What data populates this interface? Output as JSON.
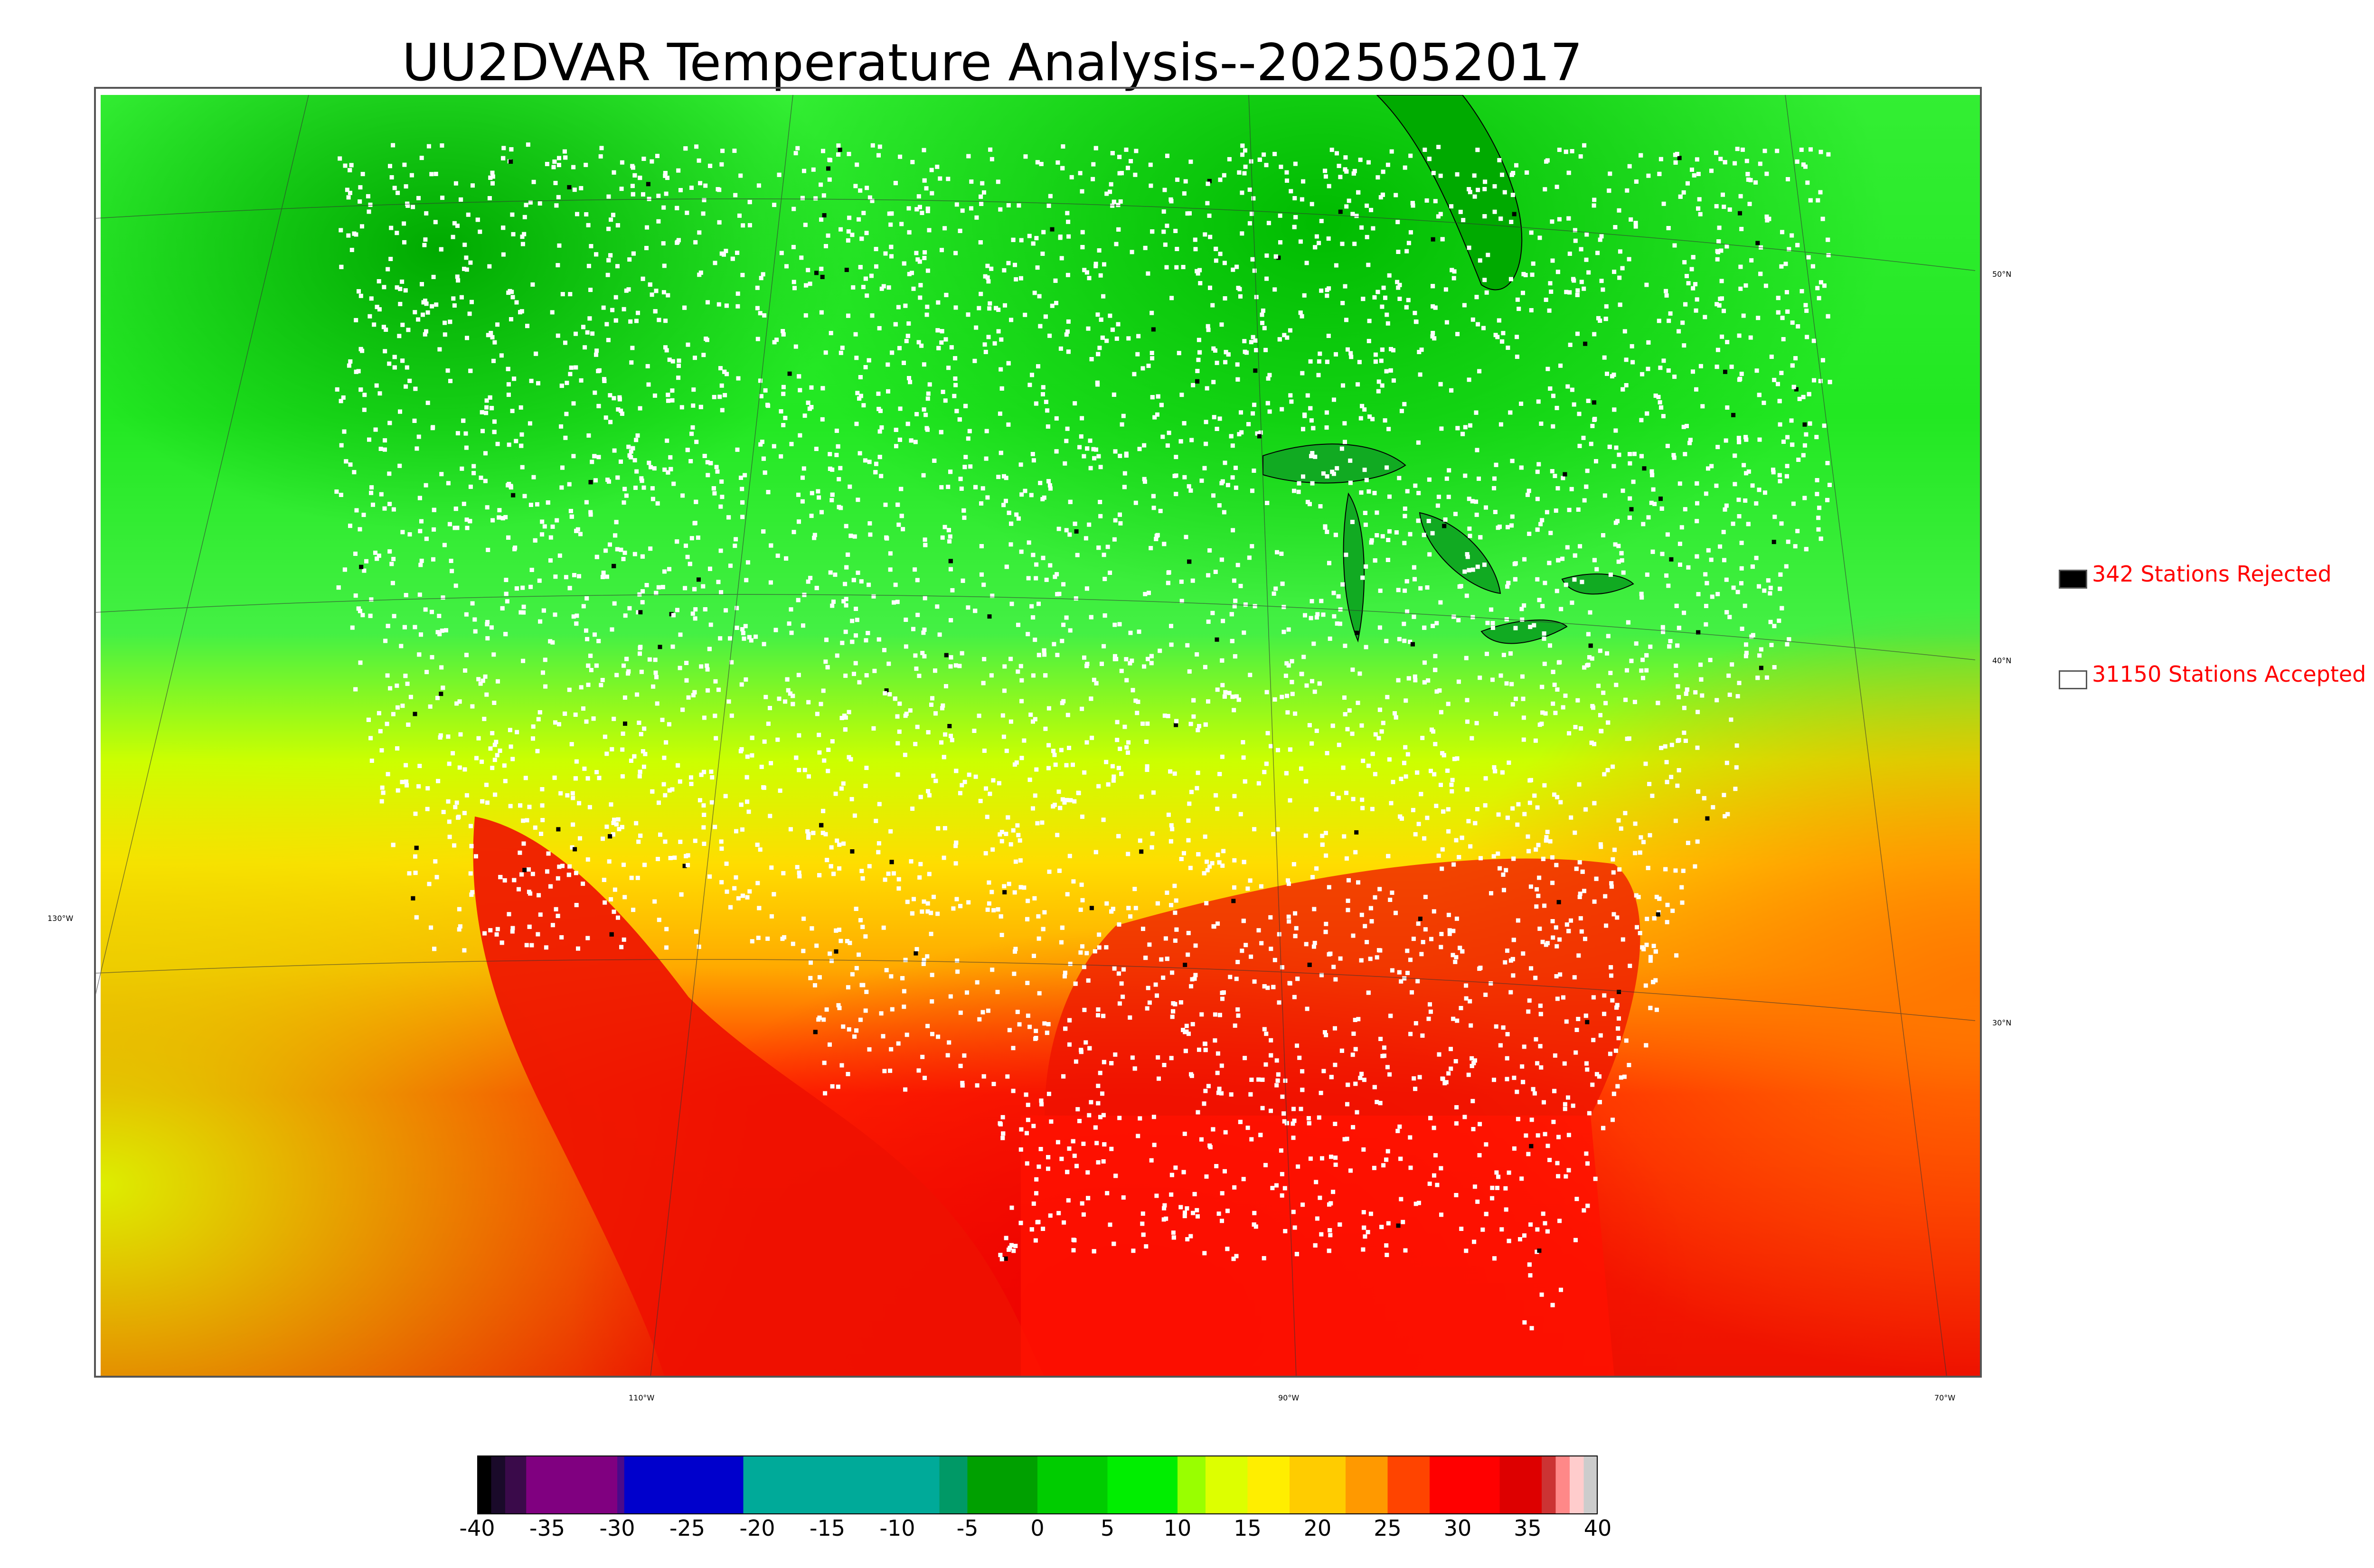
{
  "title": "UU2DVAR Temperature Analysis--2025052017",
  "legend": {
    "rejected": {
      "label": "342 Stations Rejected",
      "swatch_color": "#000000"
    },
    "accepted": {
      "label": "31150 Stations Accepted",
      "swatch_color": "#ffffff"
    },
    "text_color": "#ff0000"
  },
  "graticule": {
    "lat_labels": [
      "50°N",
      "40°N",
      "30°N"
    ],
    "lon_labels": [
      "130°W",
      "110°W",
      "90°W",
      "70°W"
    ]
  },
  "colorbar": {
    "ticks": [
      "-40",
      "-35",
      "-30",
      "-25",
      "-20",
      "-15",
      "-10",
      "-5",
      "0",
      "5",
      "10",
      "15",
      "20",
      "25",
      "30",
      "35",
      "40"
    ],
    "range": [
      -40,
      40
    ],
    "segments": [
      {
        "from": -40,
        "to": -39,
        "color": "#000000"
      },
      {
        "from": -39,
        "to": -38,
        "color": "#1a0a2a"
      },
      {
        "from": -38,
        "to": -36.5,
        "color": "#3a0a4a"
      },
      {
        "from": -36.5,
        "to": -30,
        "color": "#800080"
      },
      {
        "from": -30,
        "to": -29.5,
        "color": "#4a0a8a"
      },
      {
        "from": -29.5,
        "to": -21,
        "color": "#0000cc"
      },
      {
        "from": -21,
        "to": -7,
        "color": "#00aa99"
      },
      {
        "from": -7,
        "to": -5,
        "color": "#009966"
      },
      {
        "from": -5,
        "to": 0,
        "color": "#00a000"
      },
      {
        "from": 0,
        "to": 5,
        "color": "#00cc00"
      },
      {
        "from": 5,
        "to": 10,
        "color": "#00ee00"
      },
      {
        "from": 10,
        "to": 12,
        "color": "#99ff00"
      },
      {
        "from": 12,
        "to": 15,
        "color": "#ddff00"
      },
      {
        "from": 15,
        "to": 18,
        "color": "#ffee00"
      },
      {
        "from": 18,
        "to": 22,
        "color": "#ffcc00"
      },
      {
        "from": 22,
        "to": 25,
        "color": "#ff9900"
      },
      {
        "from": 25,
        "to": 28,
        "color": "#ff4400"
      },
      {
        "from": 28,
        "to": 33,
        "color": "#ff0000"
      },
      {
        "from": 33,
        "to": 36,
        "color": "#dd0000"
      },
      {
        "from": 36,
        "to": 37,
        "color": "#cc3333"
      },
      {
        "from": 37,
        "to": 38,
        "color": "#ff8888"
      },
      {
        "from": 38,
        "to": 39,
        "color": "#ffcccc"
      },
      {
        "from": 39,
        "to": 40,
        "color": "#cccccc"
      }
    ]
  },
  "colors": {
    "cold": "#00cc00",
    "cool": "#22ff22",
    "mild": "#ddff00",
    "warm": "#ffcc00",
    "hot": "#ff4400",
    "very_hot": "#ff0000",
    "station": "#ffffff",
    "rejected_station": "#000000"
  }
}
